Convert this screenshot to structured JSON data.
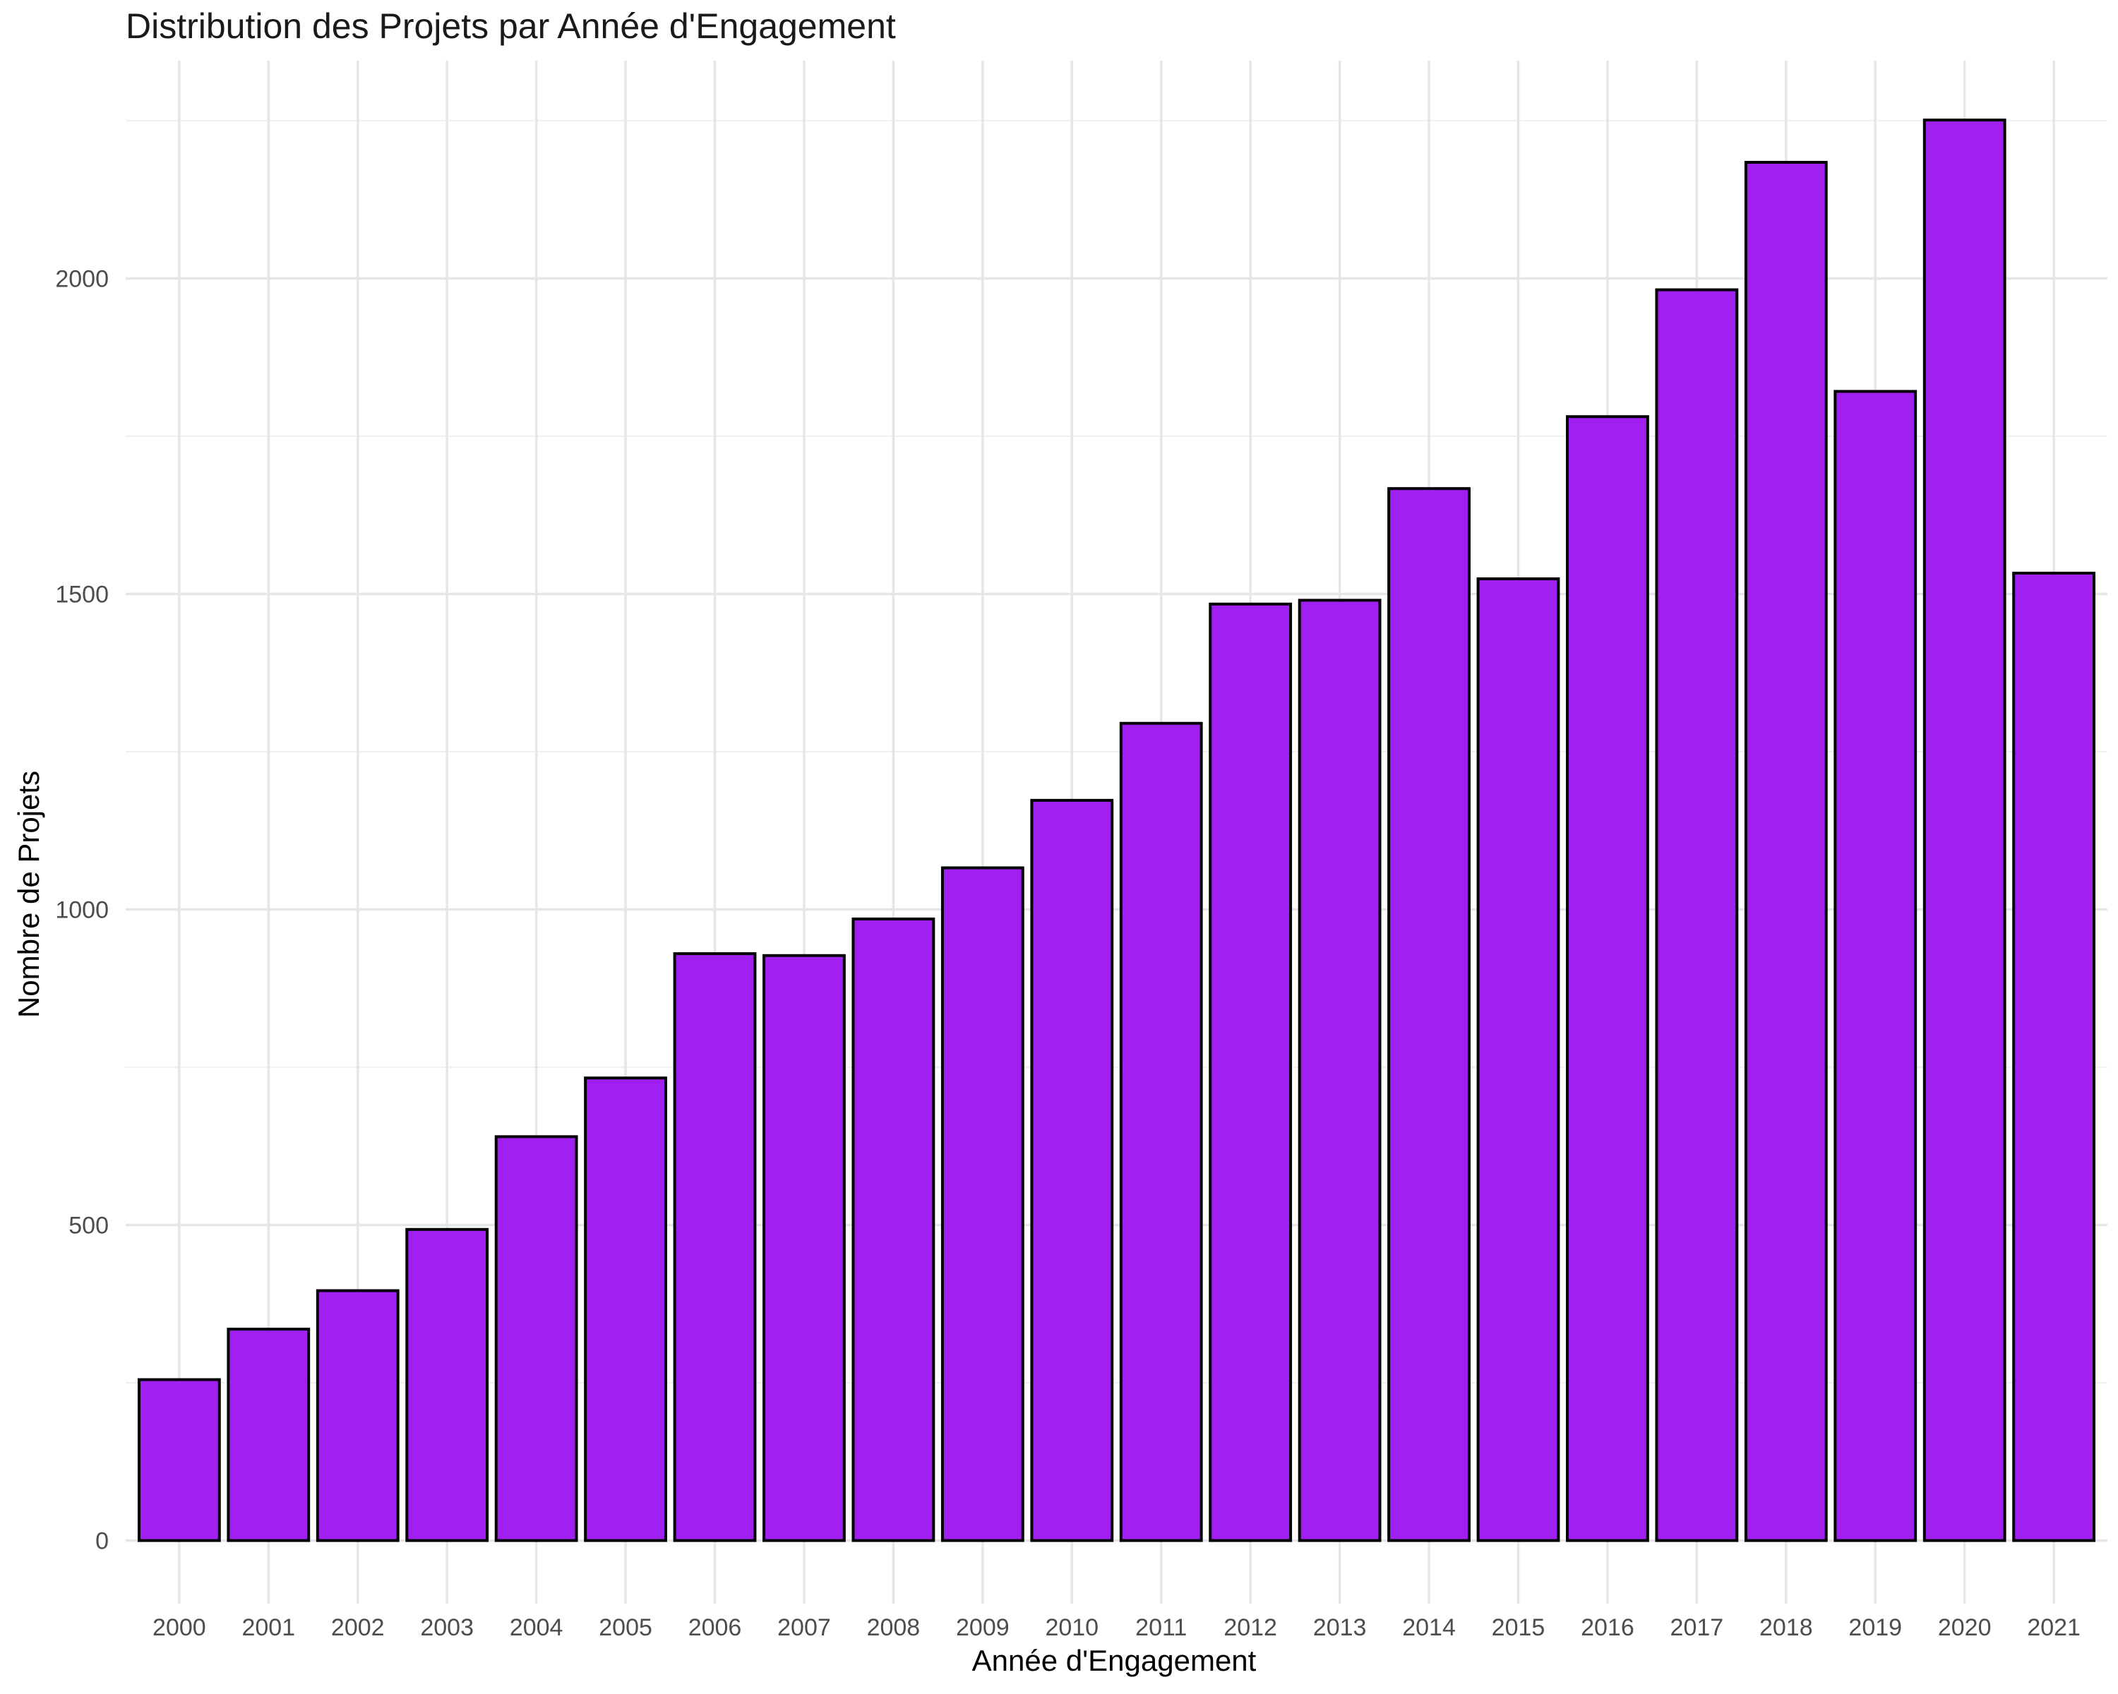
{
  "chart_data": {
    "type": "bar",
    "title": "Distribution des Projets par Année d'Engagement",
    "xlabel": "Année d'Engagement",
    "ylabel": "Nombre de Projets",
    "categories": [
      "2000",
      "2001",
      "2002",
      "2003",
      "2004",
      "2005",
      "2006",
      "2007",
      "2008",
      "2009",
      "2010",
      "2011",
      "2012",
      "2013",
      "2014",
      "2015",
      "2016",
      "2017",
      "2018",
      "2019",
      "2020",
      "2021"
    ],
    "values": [
      255,
      335,
      396,
      493,
      640,
      733,
      930,
      927,
      985,
      1066,
      1173,
      1295,
      1484,
      1490,
      1667,
      1524,
      1781,
      1982,
      2184,
      1821,
      2251,
      1533
    ],
    "ylim": [
      -100,
      2345
    ],
    "yticks": [
      0,
      500,
      1000,
      1500,
      2000
    ],
    "ytick_labels": [
      "0",
      "500",
      "1000",
      "1500",
      "2000"
    ],
    "grid": true,
    "legend": "none",
    "colors": {
      "bar_fill": "#a020f0",
      "bar_outline": "#000000",
      "grid_major": "#e6e6e6",
      "grid_minor": "#f0f0f0"
    }
  }
}
